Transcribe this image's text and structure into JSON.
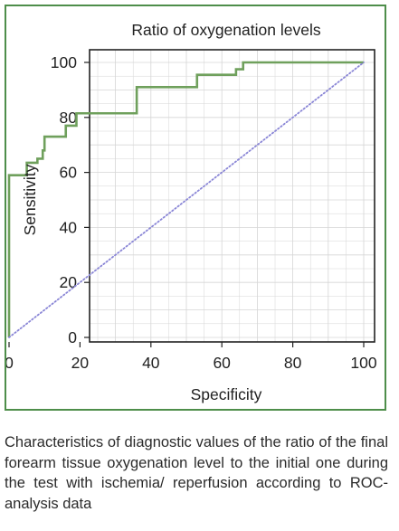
{
  "chart_data": {
    "type": "line",
    "title": "Ratio of oxygenation levels",
    "xlabel": "Specificity",
    "ylabel": "Sensitivity",
    "xlim": [
      0,
      100
    ],
    "ylim": [
      0,
      100
    ],
    "xticks": [
      "0",
      "20",
      "40",
      "60",
      "80",
      "100"
    ],
    "yticks": [
      "0",
      "20",
      "40",
      "60",
      "80",
      "100"
    ],
    "grid": true,
    "series": [
      {
        "style": "step",
        "color": "#6fa05c",
        "points": [
          [
            0,
            0
          ],
          [
            0,
            59
          ],
          [
            5,
            59
          ],
          [
            5,
            63.5
          ],
          [
            8,
            63.5
          ],
          [
            8,
            65
          ],
          [
            9.5,
            65
          ],
          [
            9.5,
            68
          ],
          [
            10,
            68
          ],
          [
            10,
            73
          ],
          [
            16,
            73
          ],
          [
            16,
            77
          ],
          [
            19,
            77
          ],
          [
            19,
            81.5
          ],
          [
            36,
            81.5
          ],
          [
            36,
            91
          ],
          [
            53,
            91
          ],
          [
            53,
            95.5
          ],
          [
            64,
            95.5
          ],
          [
            64,
            97.5
          ],
          [
            66,
            97.5
          ],
          [
            66,
            100
          ],
          [
            100,
            100
          ]
        ]
      },
      {
        "style": "dotted",
        "color": "#8a86d6",
        "points": [
          [
            0,
            0
          ],
          [
            100,
            100
          ]
        ]
      }
    ]
  },
  "caption": "Characteristics of diagnostic values of the ratio of the final forearm tissue oxygenation level to the initial one during the test with ischemia/ reperfusion according to ROC-analysis data",
  "colors": {
    "frame": "#4e8e4a",
    "roc_curve": "#6fa05c",
    "reference_line": "#8a86d6",
    "grid": "#d6d6d6"
  }
}
